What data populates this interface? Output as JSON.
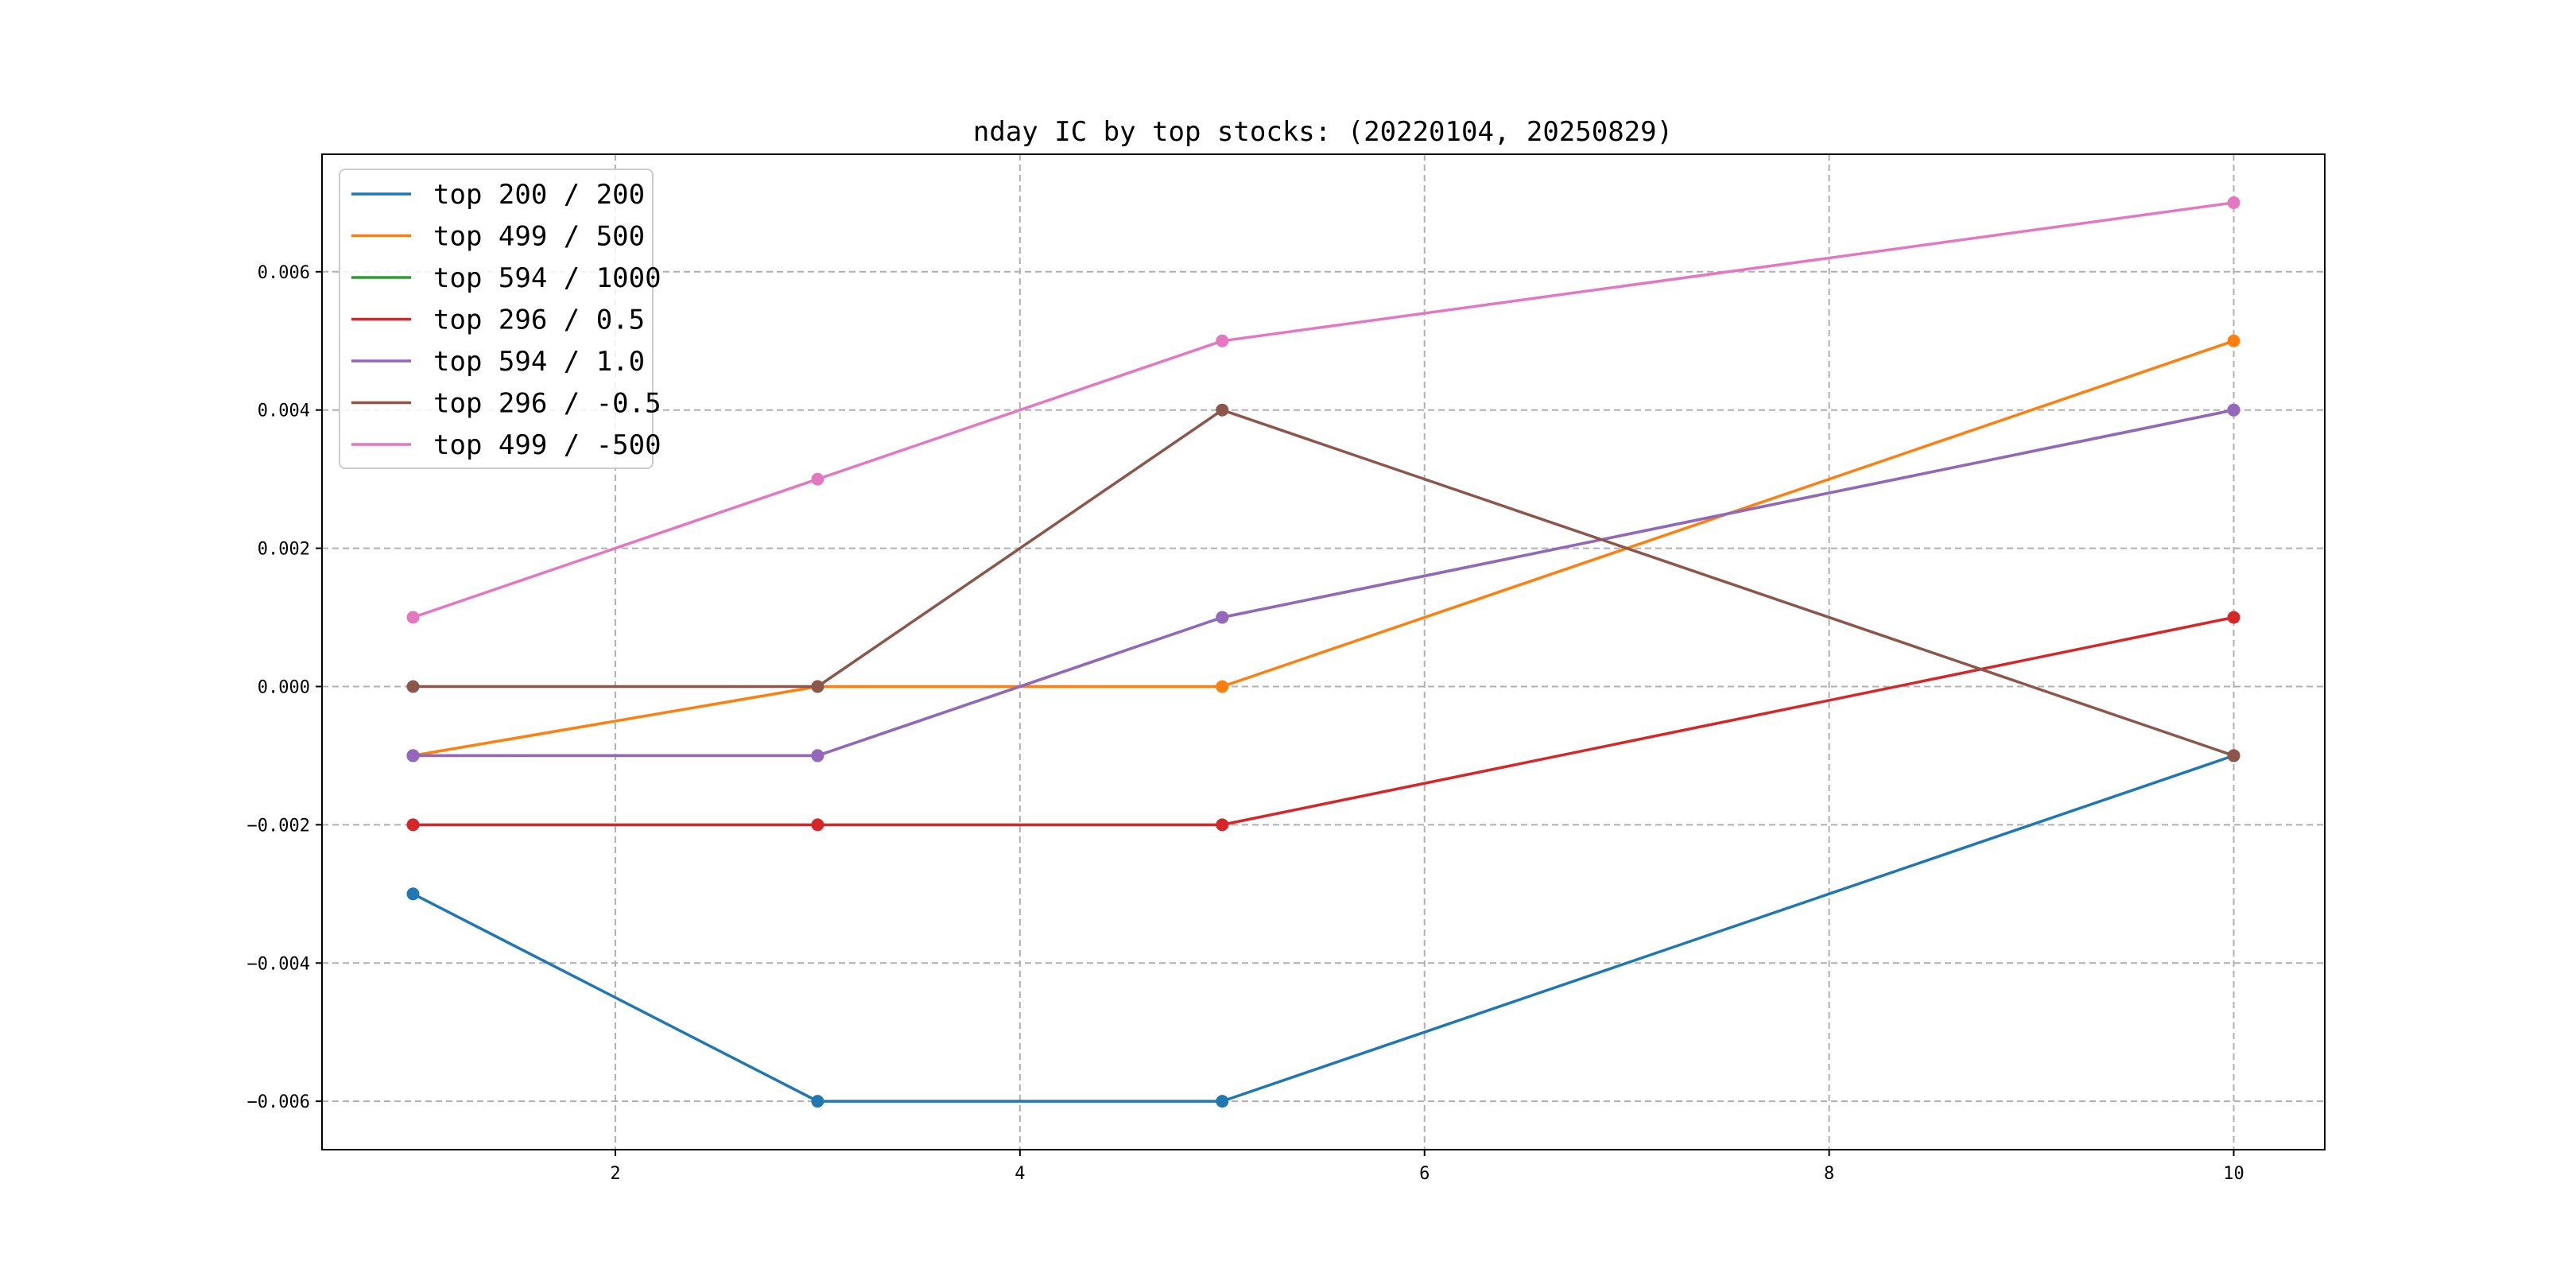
{
  "chart_data": {
    "type": "line",
    "title": "nday IC by top stocks: (20220104, 20250829)",
    "xlabel": "",
    "ylabel": "",
    "x": [
      1,
      3,
      5,
      10
    ],
    "xlim": [
      0.55,
      10.45
    ],
    "ylim": [
      -0.0067,
      0.0077
    ],
    "xticks": [
      2,
      4,
      6,
      8,
      10
    ],
    "xtick_labels": [
      "2",
      "4",
      "6",
      "8",
      "10"
    ],
    "yticks": [
      -0.006,
      -0.004,
      -0.002,
      0.0,
      0.002,
      0.004,
      0.006
    ],
    "ytick_labels": [
      "−0.006",
      "−0.004",
      "−0.002",
      "0.000",
      "0.002",
      "0.004",
      "0.006"
    ],
    "grid": true,
    "grid_style": "dashed",
    "legend_position": "top-left",
    "series": [
      {
        "name": "top 200 / 200",
        "color": "#1f77b4",
        "values": [
          -0.003,
          -0.006,
          -0.006,
          -0.001
        ]
      },
      {
        "name": "top 499 / 500",
        "color": "#ff7f0e",
        "values": [
          -0.001,
          0.0,
          0.0,
          0.005
        ]
      },
      {
        "name": "top 594 / 1000",
        "color": "#2ca02c",
        "values": [
          -0.001,
          -0.001,
          0.001,
          0.004
        ]
      },
      {
        "name": "top 296 / 0.5",
        "color": "#d62728",
        "values": [
          -0.002,
          -0.002,
          -0.002,
          0.001
        ]
      },
      {
        "name": "top 594 / 1.0",
        "color": "#9467bd",
        "values": [
          -0.001,
          -0.001,
          0.001,
          0.004
        ]
      },
      {
        "name": "top 296 / -0.5",
        "color": "#8c564b",
        "values": [
          0.0,
          0.0,
          0.004,
          -0.001
        ]
      },
      {
        "name": "top 499 / -500",
        "color": "#e377c2",
        "values": [
          0.001,
          0.003,
          0.005,
          0.007
        ]
      }
    ]
  }
}
